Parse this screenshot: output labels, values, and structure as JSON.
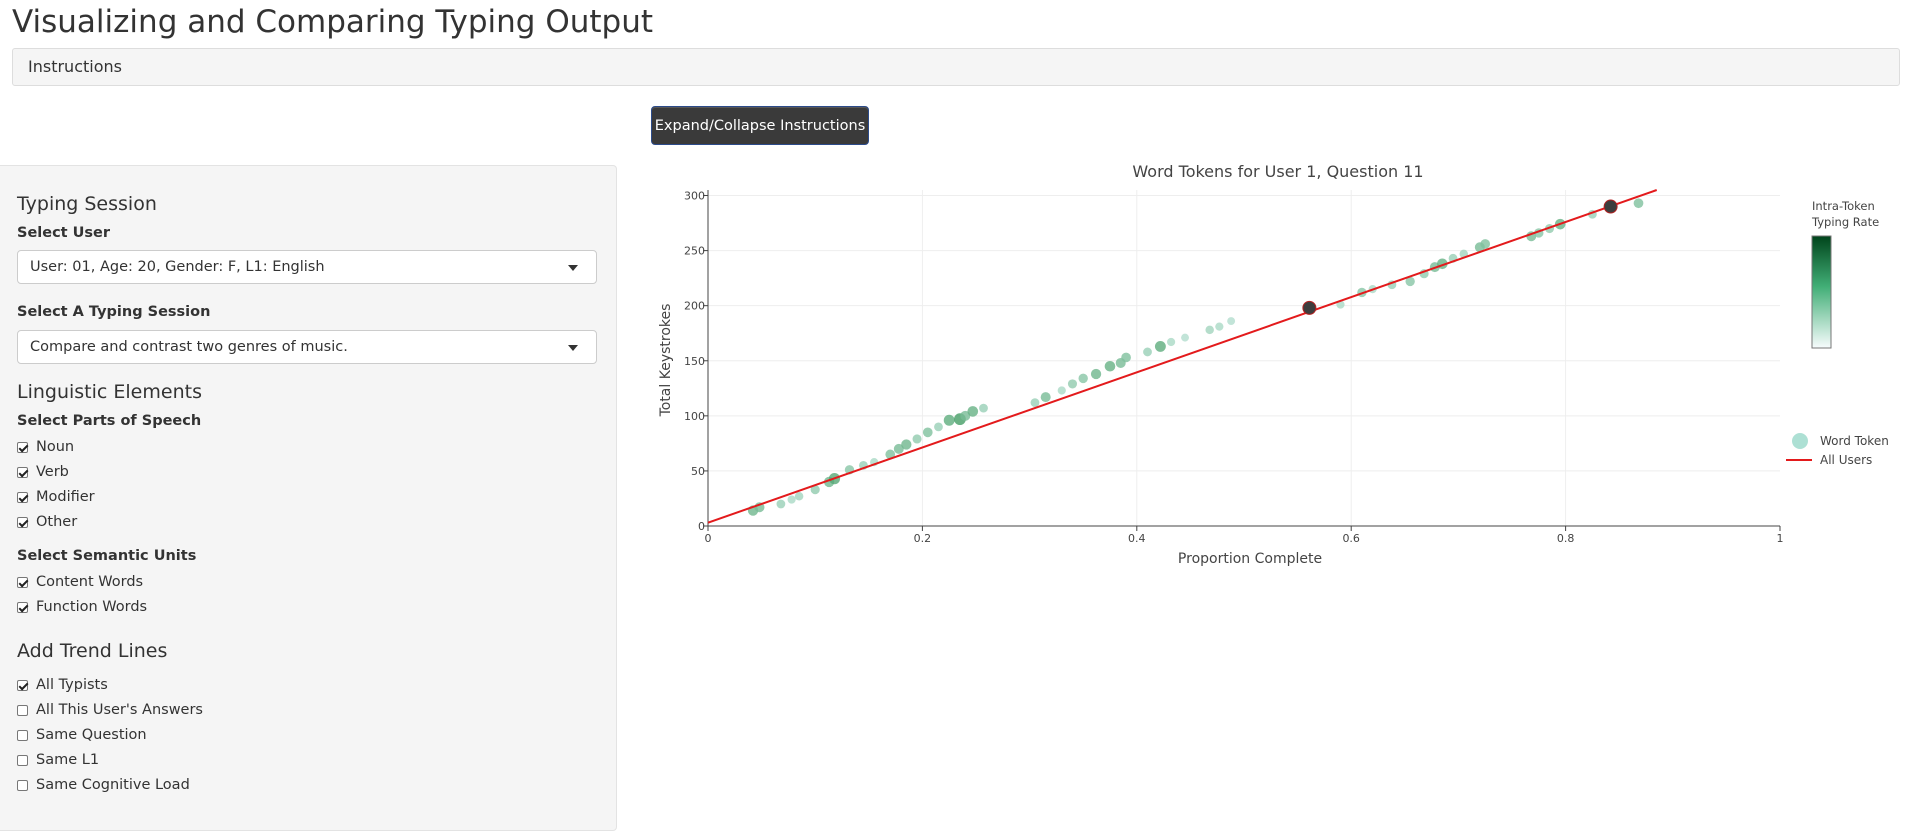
{
  "page": {
    "title": "Visualizing and Comparing Typing Output"
  },
  "instructions": {
    "label": "Instructions",
    "toggle_button": "Expand/Collapse Instructions"
  },
  "sidebar": {
    "typing_session": {
      "title": "Typing Session",
      "user_label": "Select User",
      "user_value": "User: 01, Age: 20, Gender: F, L1: English",
      "session_label": "Select A Typing Session",
      "session_value": "Compare and contrast two genres of music."
    },
    "linguistic": {
      "title": "Linguistic Elements",
      "pos_label": "Select Parts of Speech",
      "pos_options": [
        {
          "label": "Noun",
          "checked": true
        },
        {
          "label": "Verb",
          "checked": true
        },
        {
          "label": "Modifier",
          "checked": true
        },
        {
          "label": "Other",
          "checked": true
        }
      ],
      "semantic_label": "Select Semantic Units",
      "semantic_options": [
        {
          "label": "Content Words",
          "checked": true
        },
        {
          "label": "Function Words",
          "checked": true
        }
      ]
    },
    "trend": {
      "title": "Add Trend Lines",
      "options": [
        {
          "label": "All Typists",
          "checked": true
        },
        {
          "label": "All This User's Answers",
          "checked": false
        },
        {
          "label": "Same Question",
          "checked": false
        },
        {
          "label": "Same L1",
          "checked": false
        },
        {
          "label": "Same Cognitive Load",
          "checked": false
        }
      ]
    }
  },
  "colors": {
    "accent": "#3a3a3a",
    "trend_line": "#e31a1c",
    "point": "#66c2a4",
    "point_dark": "#006d2c",
    "highlight": "#3d3d3d"
  },
  "chart_data": {
    "type": "scatter",
    "title": "Word Tokens for User 1, Question 11",
    "xlabel": "Proportion Complete",
    "ylabel": "Total Keystrokes",
    "xlim": [
      0,
      1
    ],
    "ylim": [
      0,
      305
    ],
    "x_ticks": [
      "0",
      "0.2",
      "0.4",
      "0.6",
      "0.8",
      "1"
    ],
    "y_ticks": [
      "0",
      "50",
      "100",
      "150",
      "200",
      "250",
      "300"
    ],
    "grid": true,
    "colorbar_title_line1": "Intra-Token",
    "colorbar_title_line2": "Typing Rate",
    "legend": {
      "placement": "right",
      "marker_label": "Word Token",
      "line_label": "All Users"
    },
    "trend_line": {
      "name": "All Users",
      "x": [
        0,
        0.885
      ],
      "y": [
        3,
        305
      ]
    },
    "points": [
      {
        "x": 0.042,
        "y": 14,
        "r": 0.55
      },
      {
        "x": 0.048,
        "y": 17,
        "r": 0.5
      },
      {
        "x": 0.068,
        "y": 20,
        "r": 0.3
      },
      {
        "x": 0.078,
        "y": 24,
        "r": 0.2
      },
      {
        "x": 0.085,
        "y": 27,
        "r": 0.25
      },
      {
        "x": 0.1,
        "y": 33,
        "r": 0.35
      },
      {
        "x": 0.113,
        "y": 40,
        "r": 0.55
      },
      {
        "x": 0.118,
        "y": 43,
        "r": 0.7
      },
      {
        "x": 0.132,
        "y": 51,
        "r": 0.4
      },
      {
        "x": 0.145,
        "y": 55,
        "r": 0.3
      },
      {
        "x": 0.155,
        "y": 58,
        "r": 0.2
      },
      {
        "x": 0.17,
        "y": 65,
        "r": 0.45
      },
      {
        "x": 0.178,
        "y": 70,
        "r": 0.5
      },
      {
        "x": 0.185,
        "y": 74,
        "r": 0.55
      },
      {
        "x": 0.195,
        "y": 79,
        "r": 0.35
      },
      {
        "x": 0.205,
        "y": 85,
        "r": 0.45
      },
      {
        "x": 0.215,
        "y": 90,
        "r": 0.3
      },
      {
        "x": 0.225,
        "y": 96,
        "r": 0.65
      },
      {
        "x": 0.235,
        "y": 97,
        "r": 0.8
      },
      {
        "x": 0.24,
        "y": 100,
        "r": 0.5
      },
      {
        "x": 0.247,
        "y": 104,
        "r": 0.6
      },
      {
        "x": 0.257,
        "y": 107,
        "r": 0.3
      },
      {
        "x": 0.305,
        "y": 112,
        "r": 0.3
      },
      {
        "x": 0.315,
        "y": 117,
        "r": 0.5
      },
      {
        "x": 0.33,
        "y": 123,
        "r": 0.2
      },
      {
        "x": 0.34,
        "y": 129,
        "r": 0.35
      },
      {
        "x": 0.35,
        "y": 134,
        "r": 0.4
      },
      {
        "x": 0.362,
        "y": 138,
        "r": 0.55
      },
      {
        "x": 0.375,
        "y": 145,
        "r": 0.6
      },
      {
        "x": 0.385,
        "y": 148,
        "r": 0.5
      },
      {
        "x": 0.39,
        "y": 153,
        "r": 0.45
      },
      {
        "x": 0.41,
        "y": 158,
        "r": 0.3
      },
      {
        "x": 0.422,
        "y": 163,
        "r": 0.65
      },
      {
        "x": 0.432,
        "y": 167,
        "r": 0.2
      },
      {
        "x": 0.445,
        "y": 171,
        "r": 0.15
      },
      {
        "x": 0.468,
        "y": 178,
        "r": 0.25
      },
      {
        "x": 0.477,
        "y": 181,
        "r": 0.2
      },
      {
        "x": 0.488,
        "y": 186,
        "r": 0.15
      },
      {
        "x": 0.59,
        "y": 201,
        "r": 0.2
      },
      {
        "x": 0.61,
        "y": 212,
        "r": 0.4
      },
      {
        "x": 0.62,
        "y": 215,
        "r": 0.2
      },
      {
        "x": 0.638,
        "y": 219,
        "r": 0.3
      },
      {
        "x": 0.655,
        "y": 222,
        "r": 0.4
      },
      {
        "x": 0.668,
        "y": 229,
        "r": 0.35
      },
      {
        "x": 0.678,
        "y": 235,
        "r": 0.5
      },
      {
        "x": 0.685,
        "y": 238,
        "r": 0.6
      },
      {
        "x": 0.695,
        "y": 243,
        "r": 0.3
      },
      {
        "x": 0.705,
        "y": 247,
        "r": 0.25
      },
      {
        "x": 0.72,
        "y": 253,
        "r": 0.5
      },
      {
        "x": 0.725,
        "y": 256,
        "r": 0.45
      },
      {
        "x": 0.768,
        "y": 263,
        "r": 0.5
      },
      {
        "x": 0.775,
        "y": 266,
        "r": 0.4
      },
      {
        "x": 0.785,
        "y": 270,
        "r": 0.35
      },
      {
        "x": 0.795,
        "y": 274,
        "r": 0.6
      },
      {
        "x": 0.825,
        "y": 283,
        "r": 0.3
      },
      {
        "x": 0.868,
        "y": 293,
        "r": 0.45
      }
    ],
    "highlighted_points": [
      {
        "x": 0.561,
        "y": 198
      },
      {
        "x": 0.842,
        "y": 290
      }
    ]
  }
}
